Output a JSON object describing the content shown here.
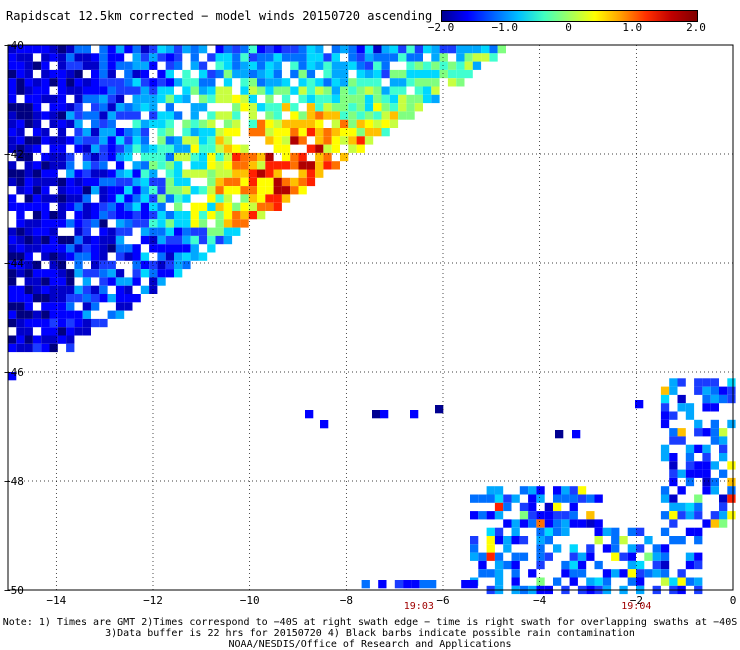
{
  "title": "Rapidscat 12.5km corrected − model winds 20150720 ascending",
  "colorbar": {
    "ticks": [
      "−2.0",
      "−1.0",
      "0",
      "1.0",
      "2.0"
    ],
    "tick_values": [
      -2.0,
      -1.0,
      0,
      1.0,
      2.0
    ],
    "range": [
      -2.0,
      2.0
    ],
    "colors": [
      "#000090",
      "#0000ff",
      "#0060ff",
      "#00c0ff",
      "#40ffc0",
      "#a0ff60",
      "#ffff00",
      "#ffa000",
      "#ff3000",
      "#c00000",
      "#800000"
    ]
  },
  "map": {
    "lon_range": [
      -15,
      0
    ],
    "lat_range": [
      -50,
      -40
    ],
    "lon_ticks": [
      "−14",
      "−12",
      "−10",
      "−8",
      "−6",
      "−4",
      "−2",
      "0"
    ],
    "lon_tick_values": [
      -14,
      -12,
      -10,
      -8,
      -6,
      -4,
      -2,
      0
    ],
    "lat_ticks": [
      "−40",
      "−42",
      "−44",
      "−46",
      "−48",
      "−50"
    ],
    "lat_tick_values": [
      -40,
      -42,
      -44,
      -46,
      -48,
      -50
    ],
    "time_labels": [
      {
        "text": "19:03",
        "lon": -6.5
      },
      {
        "text": "19:04",
        "lon": -2.0
      }
    ],
    "grid": true
  },
  "notes": [
    "Note: 1) Times are GMT 2)Times correspond to −40S at right swath edge − time is right swath for overlapping swaths at −40S",
    "3)Data buffer is 22 hrs for 20150720 4) Black barbs indicate possible rain contamination",
    "NOAA/NESDIS/Office of Research and Applications"
  ]
}
